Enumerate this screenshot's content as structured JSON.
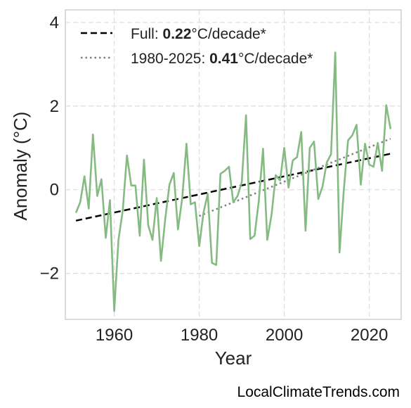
{
  "chart_data": {
    "type": "line",
    "xlabel": "Year",
    "ylabel": "Anomaly (°C)",
    "xlim": [
      1948.5,
      2027.5
    ],
    "ylim": [
      -3.1,
      4.3
    ],
    "xticks": [
      1960,
      1980,
      2000,
      2020
    ],
    "xtick_labels": [
      "1960",
      "1980",
      "2000",
      "2020"
    ],
    "yticks": [
      -2,
      0,
      2,
      4
    ],
    "ytick_labels": [
      "−2",
      "0",
      "2",
      "4"
    ],
    "grid": true,
    "legend_position": "top-left",
    "series": [
      {
        "color": "#85bb82",
        "x": [
          1951,
          1952,
          1953,
          1954,
          1955,
          1956,
          1957,
          1958,
          1959,
          1960,
          1961,
          1962,
          1963,
          1964,
          1965,
          1966,
          1967,
          1968,
          1969,
          1970,
          1971,
          1972,
          1973,
          1974,
          1975,
          1976,
          1977,
          1978,
          1979,
          1980,
          1981,
          1982,
          1983,
          1984,
          1985,
          1986,
          1987,
          1988,
          1989,
          1990,
          1991,
          1992,
          1993,
          1994,
          1995,
          1996,
          1997,
          1998,
          1999,
          2000,
          2001,
          2002,
          2003,
          2004,
          2005,
          2006,
          2007,
          2008,
          2009,
          2010,
          2011,
          2012,
          2013,
          2014,
          2015,
          2016,
          2017,
          2018,
          2019,
          2020,
          2021,
          2022,
          2023,
          2024,
          2025
        ],
        "values": [
          -0.55,
          -0.3,
          0.32,
          -0.45,
          1.32,
          -0.15,
          0.25,
          -1.15,
          -0.25,
          -2.9,
          -1.2,
          -0.5,
          0.82,
          0.1,
          0.1,
          -1.1,
          0.72,
          -0.85,
          -1.2,
          -0.2,
          -1.7,
          -0.7,
          0.12,
          0.4,
          -0.95,
          -0.2,
          1.1,
          -0.35,
          -0.3,
          -1.35,
          -0.55,
          -0.1,
          -1.75,
          -1.8,
          0.38,
          0.45,
          0.55,
          -0.3,
          -0.15,
          0.18,
          1.78,
          -1.18,
          -1.1,
          -0.28,
          0.98,
          -1.2,
          -0.6,
          0.35,
          0.22,
          1.0,
          0.05,
          0.7,
          0.78,
          1.38,
          -0.98,
          1.0,
          1.15,
          -0.22,
          0.08,
          0.65,
          0.85,
          3.28,
          -1.5,
          -0.02,
          1.18,
          1.3,
          1.55,
          0.12,
          1.1,
          0.6,
          0.55,
          1.12,
          0.45,
          2.02,
          1.45
        ]
      },
      {
        "name": "Full",
        "color": "#000000",
        "style": "dashed",
        "x": [
          1951,
          2025
        ],
        "values": [
          -0.74,
          0.86
        ],
        "rate": "0.22",
        "unit": "°C/decade*"
      },
      {
        "name": "1980-2025",
        "color": "#808080",
        "style": "dotted",
        "x": [
          1980,
          2025
        ],
        "values": [
          -0.63,
          1.22
        ],
        "rate": "0.41",
        "unit": "°C/decade*"
      }
    ]
  },
  "watermark": "LocalClimateTrends.com"
}
